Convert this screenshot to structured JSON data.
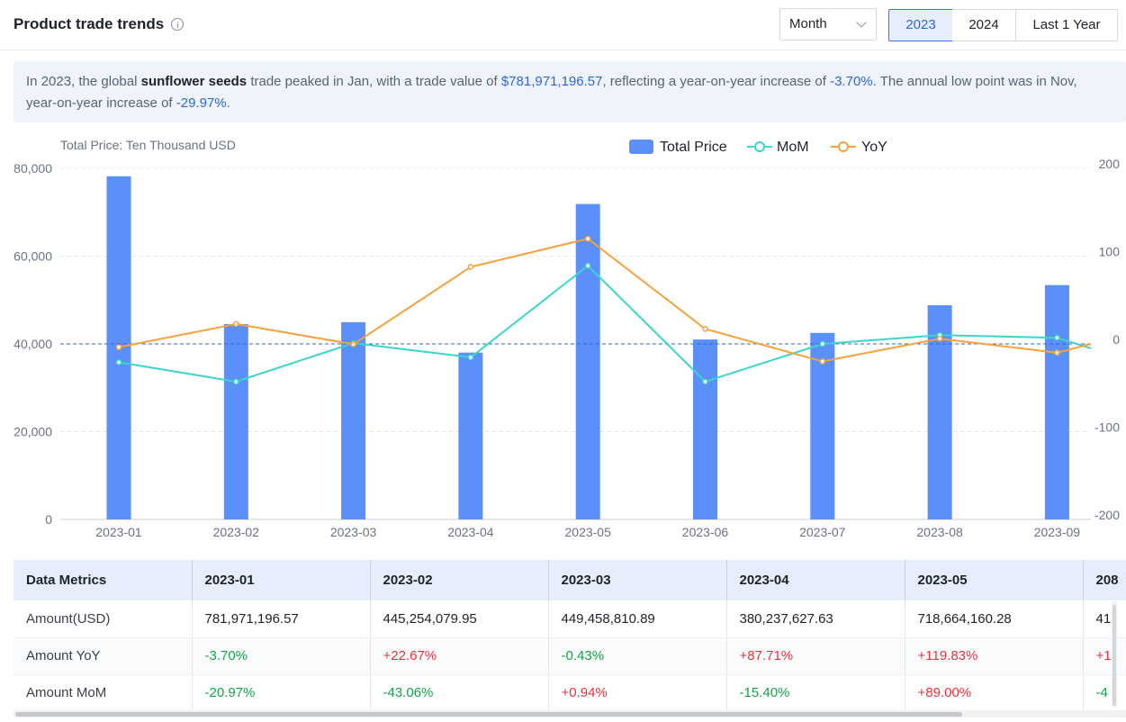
{
  "header": {
    "title": "Product trade trends",
    "period_select": "Month",
    "year_buttons": [
      "2023",
      "2024",
      "Last 1 Year"
    ],
    "active_year": "2023"
  },
  "summary": {
    "p1": "In 2023, the global ",
    "product": "sunflower seeds",
    "p2": " trade peaked in Jan, with a trade value of ",
    "peak_value": "$781,971,196.57",
    "p3": ", reflecting a year-on-year increase of ",
    "peak_yoy": "-3.70%",
    "p4": ". The annual low point was in Nov,",
    "p5": "year-on-year increase of ",
    "low_yoy": "-29.97%",
    "p6": "."
  },
  "chart_data": {
    "type": "bar",
    "y_left_label": "Total Price: Ten Thousand USD",
    "categories": [
      "2023-01",
      "2023-02",
      "2023-03",
      "2023-04",
      "2023-05",
      "2023-06",
      "2023-07",
      "2023-08",
      "2023-09"
    ],
    "series": [
      {
        "name": "Total Price",
        "type": "bar",
        "axis": "left",
        "color": "#5b8ff9",
        "values": [
          78197,
          44525,
          44946,
          38024,
          71866,
          41000,
          42500,
          48800,
          53400
        ]
      },
      {
        "name": "MoM",
        "type": "line",
        "axis": "right",
        "color": "#3ad6c9",
        "values": [
          -20.97,
          -43.06,
          0.94,
          -15.4,
          89.0,
          -43,
          0,
          10,
          7
        ]
      },
      {
        "name": "YoY",
        "type": "line",
        "axis": "right",
        "color": "#f6a23c",
        "values": [
          -3.7,
          22.67,
          -0.43,
          87.71,
          119.83,
          17,
          -20,
          6,
          -10
        ]
      }
    ],
    "y_left": {
      "min": 0,
      "max": 80000,
      "ticks": [
        "0",
        "20,000",
        "40,000",
        "60,000",
        "80,000"
      ]
    },
    "y_right": {
      "min": -200,
      "max": 200,
      "ticks": [
        "-200",
        "-100",
        "0",
        "100",
        "200"
      ]
    },
    "reference_line": 40000,
    "legend": "top-center",
    "grid": true
  },
  "table": {
    "headers": [
      "Data Metrics",
      "2023-01",
      "2023-02",
      "2023-03",
      "2023-04",
      "2023-05",
      "208"
    ],
    "rows": [
      {
        "label": "Amount(USD)",
        "cells": [
          "781,971,196.57",
          "445,254,079.95",
          "449,458,810.89",
          "380,237,627.63",
          "718,664,160.28",
          "41"
        ]
      },
      {
        "label": "Amount YoY",
        "cells": [
          "-3.70%",
          "+22.67%",
          "-0.43%",
          "+87.71%",
          "+119.83%",
          "+1"
        ]
      },
      {
        "label": "Amount MoM",
        "cells": [
          "-20.97%",
          "-43.06%",
          "+0.94%",
          "-15.40%",
          "+89.00%",
          "-4"
        ]
      }
    ]
  }
}
